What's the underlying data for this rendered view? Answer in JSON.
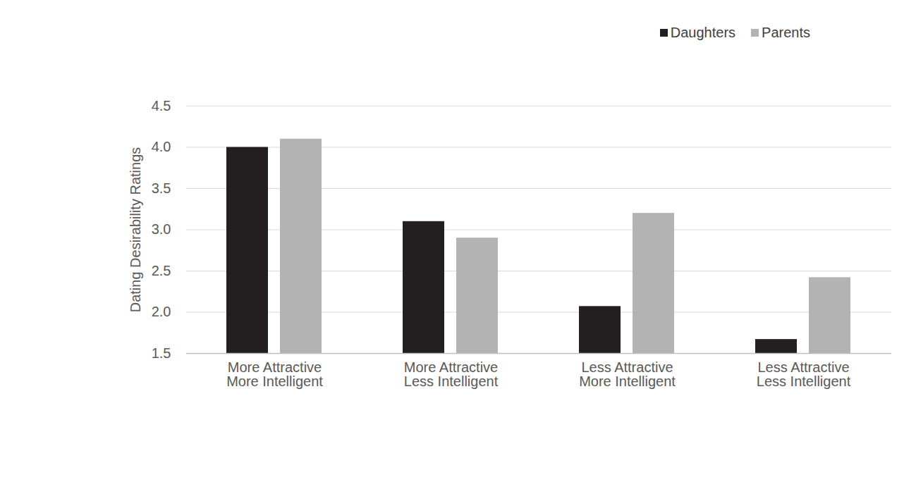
{
  "chart_data": {
    "type": "bar",
    "categories": [
      "More Attractive\nMore Intelligent",
      "More Attractive\nLess Intelligent",
      "Less Attractive\nMore Intelligent",
      "Less Attractive\nLess Intelligent"
    ],
    "series": [
      {
        "name": "Daughters",
        "color": "#231f20",
        "values": [
          4.0,
          3.1,
          2.07,
          1.67
        ]
      },
      {
        "name": "Parents",
        "color": "#b3b3b3",
        "values": [
          4.1,
          2.9,
          3.2,
          2.42
        ]
      }
    ],
    "y_label": "Dating Desirability Ratings",
    "ylim": [
      1.5,
      4.5
    ],
    "yticks": [
      1.5,
      2,
      2.5,
      3,
      3.5,
      4,
      4.5
    ],
    "grid": true,
    "legend": "top-right"
  }
}
